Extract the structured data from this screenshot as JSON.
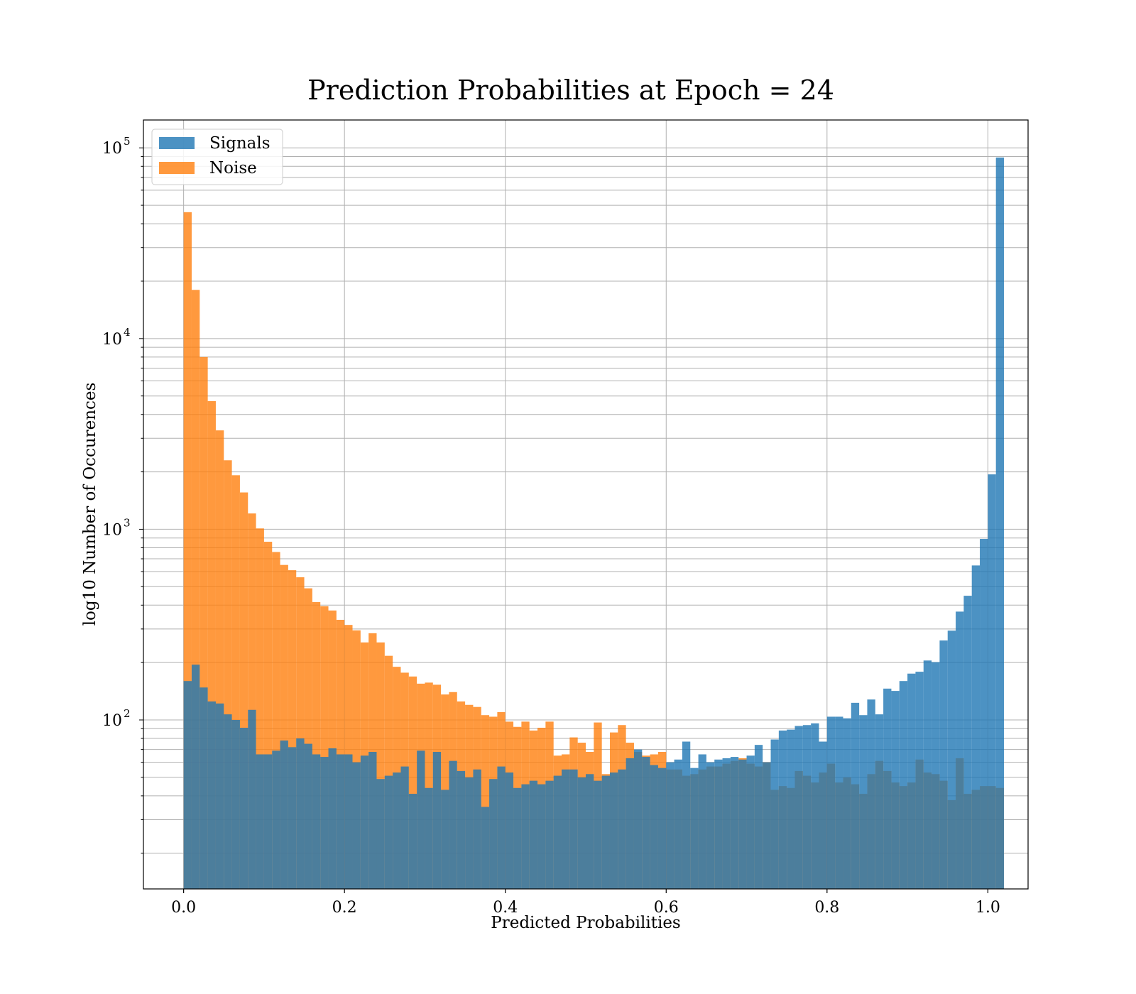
{
  "chart_data": {
    "type": "bar",
    "title": "Prediction Probabilities at Epoch = 24",
    "xlabel": "Predicted Probabilities",
    "ylabel": "log10 Number of Occurences",
    "xlim": [
      -0.05,
      1.05
    ],
    "ylim": [
      13,
      140000
    ],
    "yscale": "log",
    "grid": true,
    "legend_position": "top-left",
    "x_ticks": [
      0.0,
      0.2,
      0.4,
      0.6,
      0.8,
      1.0
    ],
    "x_tick_labels": [
      "0.0",
      "0.2",
      "0.4",
      "0.6",
      "0.8",
      "1.0"
    ],
    "y_ticks": [
      100,
      1000,
      10000,
      100000
    ],
    "y_tick_bases": [
      "10",
      "10",
      "10",
      "10"
    ],
    "y_tick_exponents": [
      "2",
      "3",
      "4",
      "5"
    ],
    "bin_edges_start": 0.0,
    "bin_width": 0.01,
    "series": [
      {
        "name": "Signals",
        "color": "#1f77b4",
        "opacity": 0.8,
        "values": [
          160,
          195,
          148,
          125,
          122,
          107,
          100,
          91,
          113,
          66,
          66,
          69,
          78,
          72,
          80,
          75,
          66,
          64,
          71,
          66,
          66,
          60,
          65,
          68,
          49,
          51,
          53,
          57,
          41,
          69,
          44,
          68,
          43,
          61,
          54,
          50,
          55,
          35,
          49,
          57,
          53,
          44,
          46,
          48,
          46,
          48,
          51,
          55,
          55,
          50,
          52,
          48,
          51,
          53,
          55,
          63,
          70,
          64,
          58,
          56,
          60,
          62,
          77,
          56,
          66,
          60,
          62,
          63,
          64,
          62,
          65,
          74,
          60,
          79,
          88,
          89,
          93,
          94,
          96,
          77,
          104,
          104,
          102,
          123,
          106,
          128,
          107,
          146,
          142,
          160,
          175,
          179,
          205,
          201,
          261,
          294,
          370,
          448,
          646,
          890,
          1940,
          89000
        ]
      },
      {
        "name": "Noise",
        "color": "#ff7f0e",
        "opacity": 0.8,
        "values": [
          46000,
          18000,
          8000,
          4700,
          3300,
          2300,
          1920,
          1560,
          1210,
          1010,
          860,
          760,
          650,
          610,
          560,
          490,
          415,
          395,
          375,
          335,
          315,
          295,
          255,
          285,
          255,
          217,
          190,
          177,
          169,
          155,
          157,
          153,
          136,
          140,
          125,
          120,
          117,
          106,
          104,
          110,
          98,
          92,
          98,
          88,
          91,
          98,
          65,
          66,
          81,
          76,
          68,
          97,
          52,
          86,
          94,
          76,
          68,
          65,
          66,
          68,
          55,
          55,
          51,
          52,
          55,
          57,
          57,
          59,
          61,
          63,
          59,
          57,
          60,
          43,
          45,
          44,
          54,
          51,
          47,
          53,
          59,
          47,
          50,
          46,
          41,
          52,
          61,
          54,
          47,
          45,
          47,
          62,
          53,
          52,
          48,
          38,
          63,
          41,
          43,
          45,
          45,
          44
        ]
      }
    ]
  }
}
